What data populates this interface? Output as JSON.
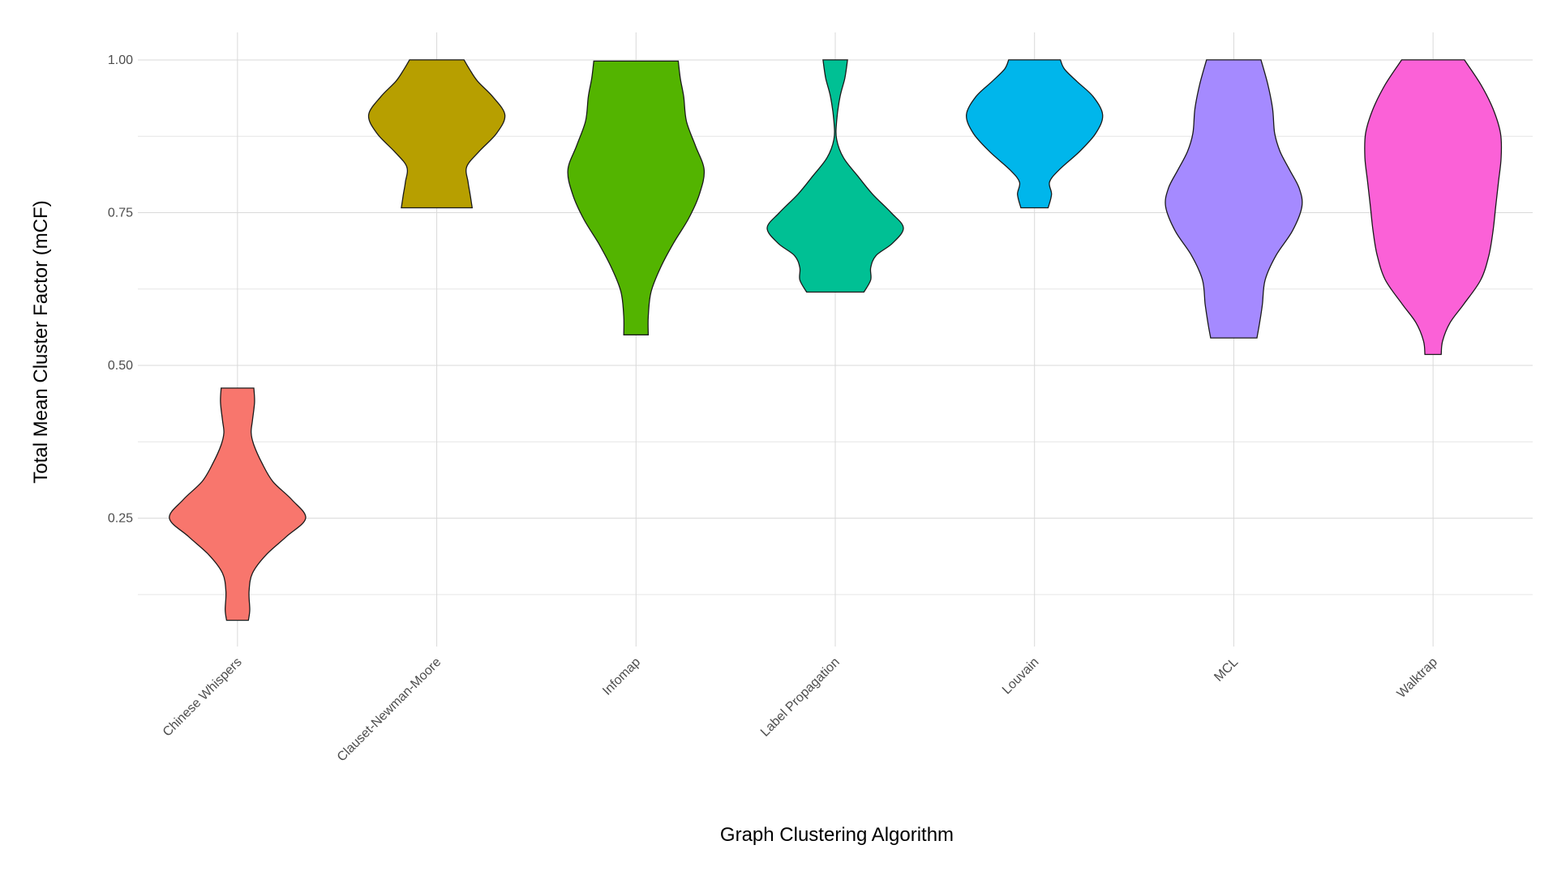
{
  "chart_data": {
    "type": "violin",
    "xlabel": "Graph Clustering Algorithm",
    "ylabel": "Total Mean Cluster Factor (mCF)",
    "ylim": [
      0.04,
      1.045
    ],
    "y_ticks": [
      0.25,
      0.5,
      0.75,
      1.0
    ],
    "y_tick_labels": [
      "0.25",
      "0.50",
      "0.75",
      "1.00"
    ],
    "y_minor_ticks": [
      0.125,
      0.375,
      0.625,
      0.875
    ],
    "grid": true,
    "legend": "none",
    "categories": [
      "Chinese Whispers",
      "Clauset-Newman-Moore",
      "Infomap",
      "Label Propagation",
      "Louvain",
      "MCL",
      "Walktrap"
    ],
    "series": [
      {
        "category": "Chinese Whispers",
        "color": "#F8766D",
        "min": 0.083,
        "max": 0.463,
        "density": [
          [
            0.083,
            0.16
          ],
          [
            0.1,
            0.18
          ],
          [
            0.13,
            0.17
          ],
          [
            0.16,
            0.22
          ],
          [
            0.19,
            0.42
          ],
          [
            0.22,
            0.72
          ],
          [
            0.25,
            1.0
          ],
          [
            0.28,
            0.8
          ],
          [
            0.31,
            0.52
          ],
          [
            0.34,
            0.36
          ],
          [
            0.37,
            0.24
          ],
          [
            0.39,
            0.2
          ],
          [
            0.41,
            0.22
          ],
          [
            0.44,
            0.25
          ],
          [
            0.463,
            0.24
          ]
        ]
      },
      {
        "category": "Clauset-Newman-Moore",
        "color": "#B79F00",
        "min": 0.758,
        "max": 1.0,
        "density": [
          [
            0.758,
            0.52
          ],
          [
            0.78,
            0.49
          ],
          [
            0.8,
            0.46
          ],
          [
            0.825,
            0.44
          ],
          [
            0.85,
            0.62
          ],
          [
            0.88,
            0.88
          ],
          [
            0.91,
            1.0
          ],
          [
            0.94,
            0.82
          ],
          [
            0.965,
            0.6
          ],
          [
            0.985,
            0.48
          ],
          [
            1.0,
            0.4
          ]
        ]
      },
      {
        "category": "Infomap",
        "color": "#53B400",
        "min": 0.55,
        "max": 0.998,
        "density": [
          [
            0.55,
            0.18
          ],
          [
            0.58,
            0.18
          ],
          [
            0.62,
            0.22
          ],
          [
            0.66,
            0.36
          ],
          [
            0.7,
            0.55
          ],
          [
            0.74,
            0.77
          ],
          [
            0.78,
            0.93
          ],
          [
            0.82,
            1.0
          ],
          [
            0.86,
            0.87
          ],
          [
            0.9,
            0.74
          ],
          [
            0.94,
            0.7
          ],
          [
            0.97,
            0.65
          ],
          [
            0.998,
            0.62
          ]
        ]
      },
      {
        "category": "Label Propagation",
        "color": "#00C094",
        "min": 0.62,
        "max": 1.0,
        "density": [
          [
            0.62,
            0.42
          ],
          [
            0.64,
            0.52
          ],
          [
            0.66,
            0.52
          ],
          [
            0.68,
            0.6
          ],
          [
            0.7,
            0.84
          ],
          [
            0.725,
            1.0
          ],
          [
            0.75,
            0.82
          ],
          [
            0.78,
            0.55
          ],
          [
            0.81,
            0.33
          ],
          [
            0.84,
            0.12
          ],
          [
            0.87,
            0.02
          ],
          [
            0.9,
            0.02
          ],
          [
            0.94,
            0.07
          ],
          [
            0.97,
            0.14
          ],
          [
            1.0,
            0.18
          ]
        ]
      },
      {
        "category": "Louvain",
        "color": "#00B6EB",
        "min": 0.758,
        "max": 1.0,
        "density": [
          [
            0.758,
            0.2
          ],
          [
            0.78,
            0.25
          ],
          [
            0.8,
            0.22
          ],
          [
            0.82,
            0.36
          ],
          [
            0.85,
            0.66
          ],
          [
            0.88,
            0.9
          ],
          [
            0.91,
            1.0
          ],
          [
            0.94,
            0.86
          ],
          [
            0.965,
            0.62
          ],
          [
            0.985,
            0.44
          ],
          [
            1.0,
            0.38
          ]
        ]
      },
      {
        "category": "MCL",
        "color": "#A58AFF",
        "min": 0.545,
        "max": 1.0,
        "density": [
          [
            0.545,
            0.34
          ],
          [
            0.57,
            0.38
          ],
          [
            0.6,
            0.42
          ],
          [
            0.64,
            0.46
          ],
          [
            0.68,
            0.62
          ],
          [
            0.72,
            0.86
          ],
          [
            0.76,
            1.0
          ],
          [
            0.79,
            0.96
          ],
          [
            0.82,
            0.82
          ],
          [
            0.85,
            0.68
          ],
          [
            0.88,
            0.6
          ],
          [
            0.92,
            0.57
          ],
          [
            0.96,
            0.5
          ],
          [
            1.0,
            0.4
          ]
        ]
      },
      {
        "category": "Walktrap",
        "color": "#FB61D7",
        "min": 0.518,
        "max": 1.0,
        "density": [
          [
            0.518,
            0.12
          ],
          [
            0.54,
            0.14
          ],
          [
            0.57,
            0.25
          ],
          [
            0.6,
            0.45
          ],
          [
            0.64,
            0.7
          ],
          [
            0.68,
            0.82
          ],
          [
            0.72,
            0.88
          ],
          [
            0.76,
            0.92
          ],
          [
            0.8,
            0.96
          ],
          [
            0.84,
            1.0
          ],
          [
            0.88,
            0.99
          ],
          [
            0.92,
            0.88
          ],
          [
            0.96,
            0.7
          ],
          [
            1.0,
            0.46
          ]
        ]
      }
    ]
  }
}
